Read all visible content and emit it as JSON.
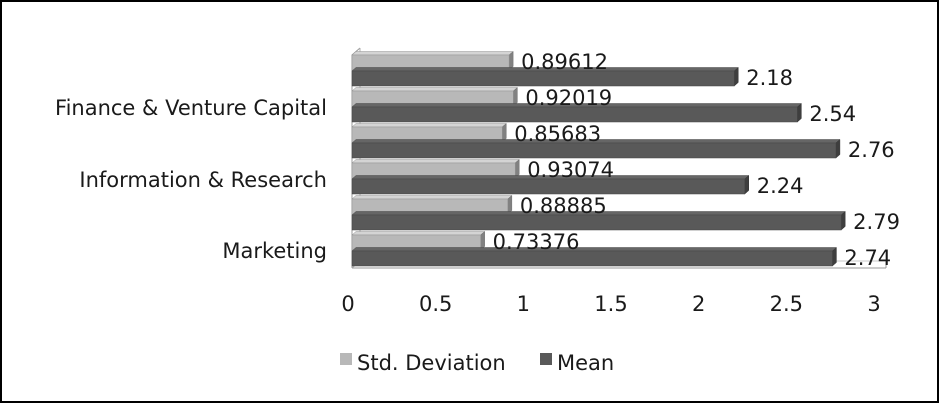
{
  "chart_data": {
    "type": "bar",
    "orientation": "horizontal",
    "title": "",
    "xlabel": "",
    "ylabel": "",
    "xlim": [
      0,
      3
    ],
    "x_ticks": [
      "0",
      "0.5",
      "1",
      "1.5",
      "2",
      "2.5",
      "3"
    ],
    "categories_labeled": [
      "Finance & Venture Capital",
      "Information & Research",
      "Marketing"
    ],
    "groups": 6,
    "series": [
      {
        "name": "Std. Deviation",
        "color": "#b8b8b8",
        "values": [
          0.89612,
          0.92019,
          0.85683,
          0.93074,
          0.88885,
          0.73376
        ],
        "labels": [
          "0.89612",
          "0.92019",
          "0.85683",
          "0.93074",
          "0.88885",
          "0.73376"
        ]
      },
      {
        "name": "Mean",
        "color": "#595959",
        "values": [
          2.18,
          2.54,
          2.76,
          2.24,
          2.79,
          2.74
        ],
        "labels": [
          "2.18",
          "2.54",
          "2.76",
          "2.24",
          "2.79",
          "2.74"
        ]
      }
    ],
    "legend": "bottom",
    "grid": false
  }
}
